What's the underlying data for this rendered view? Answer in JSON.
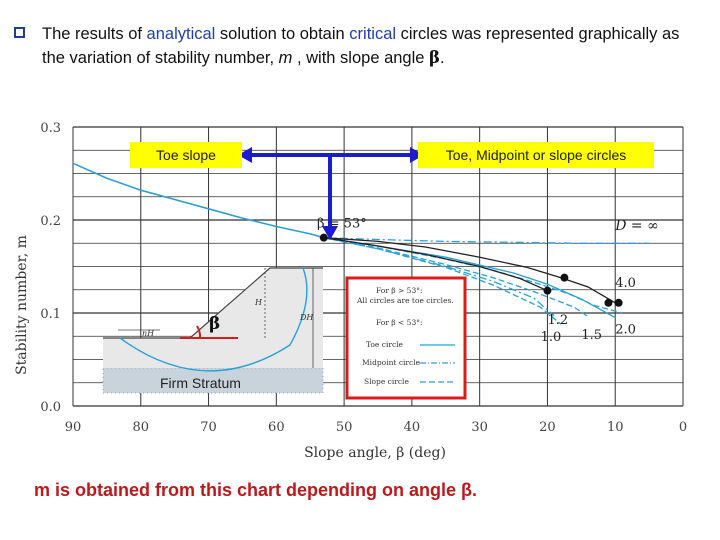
{
  "heading": {
    "part1": "The results of ",
    "word_analytical": "analytical",
    "part2": " solution to obtain ",
    "word_critical": "critical",
    "part3": " circles was represented graphically as the variation of stability number, ",
    "var_m": "m",
    "part4": " , with slope angle ",
    "beta": "β",
    "period": "."
  },
  "callouts": {
    "toe_slope": "Toe slope",
    "toe_mid": "Toe, Midpoint or slope circles"
  },
  "inset": {
    "beta_symbol": "β",
    "firm_stratum": "Firm Stratum",
    "h_label": "H",
    "dh_label": "DH",
    "nh_label": "nH"
  },
  "legend": {
    "line1": "For β > 53°:",
    "line2": "All circles are toe circles.",
    "line3": "For β < 53°:",
    "toe": "Toe circle",
    "mid": "Midpoint circle",
    "slope": "Slope circle"
  },
  "footer": {
    "note": "m is obtained from this chart depending on angle β."
  },
  "colors": {
    "curve": "#2aa0d8",
    "black_curve": "#222222",
    "arrow": "#1c1ccf",
    "highlight_red": "#d81b1b",
    "callout_fill": "#ffff00"
  },
  "chart_data": {
    "type": "line",
    "xlabel": "Slope angle, β (deg)",
    "ylabel": "Stability number, m",
    "xlim": [
      90,
      0
    ],
    "ylim": [
      0.0,
      0.3
    ],
    "xticks": [
      "90",
      "80",
      "70",
      "60",
      "50",
      "40",
      "30",
      "20",
      "10",
      "0"
    ],
    "yticks": [
      "0.0",
      "0.1",
      "0.2",
      "0.3"
    ],
    "grid": true,
    "annotations": [
      "β = 53°",
      "D = ∞",
      "4.0",
      "1.2",
      "1.0",
      "1.5",
      "2.0"
    ],
    "series": [
      {
        "x": [
          90,
          85,
          80,
          75,
          70,
          65,
          60,
          55,
          53
        ],
        "y": [
          0.261,
          0.245,
          0.232,
          0.222,
          0.212,
          0.202,
          0.193,
          0.185,
          0.181
        ]
      },
      {
        "x": [
          53,
          45,
          35,
          25,
          15,
          8,
          5
        ],
        "y": [
          0.181,
          0.179,
          0.177,
          0.176,
          0.175,
          0.175,
          0.175
        ]
      },
      {
        "x": [
          53,
          45,
          35,
          25,
          20,
          15,
          10
        ],
        "y": [
          0.181,
          0.172,
          0.16,
          0.143,
          0.131,
          0.115,
          0.095
        ]
      },
      {
        "x": [
          53,
          45,
          35,
          28,
          22,
          17,
          13,
          9
        ],
        "y": [
          0.181,
          0.172,
          0.158,
          0.146,
          0.133,
          0.121,
          0.108,
          0.1
        ]
      },
      {
        "x": [
          53,
          45,
          35,
          28,
          22,
          16,
          14
        ],
        "y": [
          0.181,
          0.17,
          0.152,
          0.138,
          0.123,
          0.106,
          0.096
        ]
      },
      {
        "x": [
          53,
          45,
          35,
          28,
          22,
          19
        ],
        "y": [
          0.181,
          0.169,
          0.15,
          0.134,
          0.116,
          0.097
        ]
      },
      {
        "x": [
          53,
          45,
          35,
          28,
          21,
          18
        ],
        "y": [
          0.181,
          0.169,
          0.149,
          0.13,
          0.106,
          0.088
        ]
      },
      {
        "x": [
          53,
          45,
          38,
          30,
          24,
          20
        ],
        "y": [
          0.181,
          0.172,
          0.163,
          0.15,
          0.137,
          0.124
        ]
      },
      {
        "x": [
          53,
          45,
          38,
          30,
          23,
          18,
          14,
          10
        ],
        "y": [
          0.181,
          0.177,
          0.171,
          0.16,
          0.149,
          0.138,
          0.128,
          0.111
        ]
      }
    ],
    "points": [
      {
        "x": 53,
        "y": 0.181
      },
      {
        "x": 17.5,
        "y": 0.138
      },
      {
        "x": 20,
        "y": 0.124
      },
      {
        "x": 11,
        "y": 0.111
      },
      {
        "x": 9.5,
        "y": 0.111
      }
    ]
  }
}
